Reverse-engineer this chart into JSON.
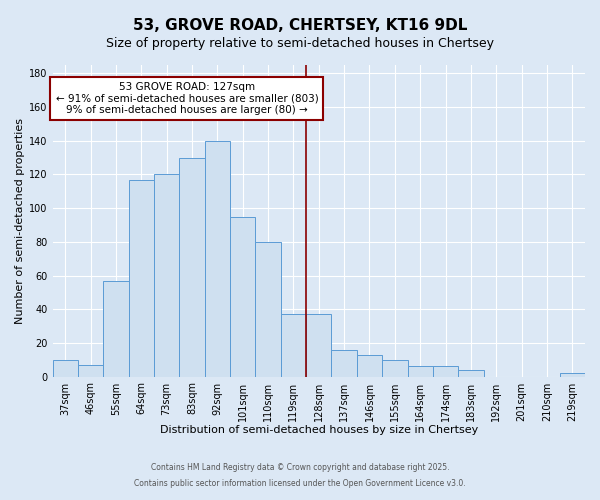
{
  "title1": "53, GROVE ROAD, CHERTSEY, KT16 9DL",
  "title2": "Size of property relative to semi-detached houses in Chertsey",
  "xlabel": "Distribution of semi-detached houses by size in Chertsey",
  "ylabel": "Number of semi-detached properties",
  "categories": [
    "37sqm",
    "46sqm",
    "55sqm",
    "64sqm",
    "73sqm",
    "83sqm",
    "92sqm",
    "101sqm",
    "110sqm",
    "119sqm",
    "128sqm",
    "137sqm",
    "146sqm",
    "155sqm",
    "164sqm",
    "174sqm",
    "183sqm",
    "192sqm",
    "201sqm",
    "210sqm",
    "219sqm"
  ],
  "values": [
    10,
    7,
    57,
    117,
    120,
    130,
    140,
    95,
    80,
    37,
    37,
    16,
    13,
    10,
    6,
    6,
    4,
    0,
    0,
    0,
    2
  ],
  "bar_color": "#cfe0f0",
  "bar_edge_color": "#5b9bd5",
  "vline_color": "#8b0000",
  "annotation_title": "53 GROVE ROAD: 127sqm",
  "annotation_line1": "← 91% of semi-detached houses are smaller (803)",
  "annotation_line2": "9% of semi-detached houses are larger (80) →",
  "annotation_box_facecolor": "#ffffff",
  "annotation_box_edgecolor": "#8b0000",
  "ylim": [
    0,
    185
  ],
  "yticks": [
    0,
    20,
    40,
    60,
    80,
    100,
    120,
    140,
    160,
    180
  ],
  "bg_color": "#dce8f5",
  "grid_color": "#ffffff",
  "footer1": "Contains HM Land Registry data © Crown copyright and database right 2025.",
  "footer2": "Contains public sector information licensed under the Open Government Licence v3.0.",
  "title_fontsize": 11,
  "subtitle_fontsize": 9,
  "tick_fontsize": 7,
  "xlabel_fontsize": 8,
  "ylabel_fontsize": 8,
  "annot_fontsize": 7.5,
  "footer_fontsize": 5.5
}
